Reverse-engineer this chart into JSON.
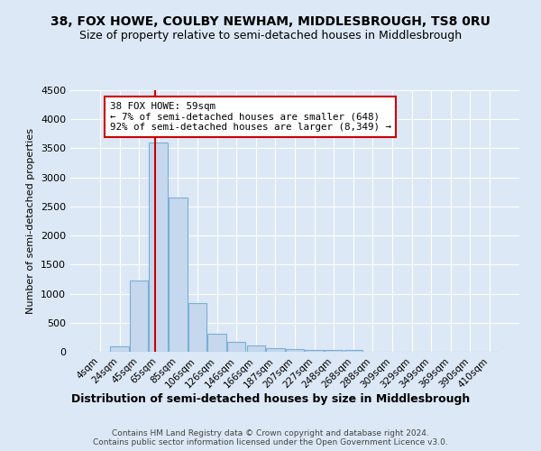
{
  "title": "38, FOX HOWE, COULBY NEWHAM, MIDDLESBROUGH, TS8 0RU",
  "subtitle": "Size of property relative to semi-detached houses in Middlesbrough",
  "xlabel": "Distribution of semi-detached houses by size in Middlesbrough",
  "ylabel": "Number of semi-detached properties",
  "footnote": "Contains HM Land Registry data © Crown copyright and database right 2024.\nContains public sector information licensed under the Open Government Licence v3.0.",
  "categories": [
    "4sqm",
    "24sqm",
    "45sqm",
    "65sqm",
    "85sqm",
    "106sqm",
    "126sqm",
    "146sqm",
    "166sqm",
    "187sqm",
    "207sqm",
    "227sqm",
    "248sqm",
    "268sqm",
    "288sqm",
    "309sqm",
    "329sqm",
    "349sqm",
    "369sqm",
    "390sqm",
    "410sqm"
  ],
  "values": [
    0,
    100,
    1220,
    3600,
    2660,
    840,
    310,
    165,
    110,
    60,
    45,
    30,
    30,
    30,
    0,
    0,
    0,
    0,
    0,
    0,
    0
  ],
  "bar_color": "#c5d8ed",
  "bar_edge_color": "#7bafd4",
  "property_size": "59sqm",
  "pct_smaller": 7,
  "count_smaller": 648,
  "pct_larger": 92,
  "count_larger": "8,349",
  "annotation_box_color": "#ffffff",
  "annotation_box_edge_color": "#cc0000",
  "property_line_color": "#cc0000",
  "property_line_index": 2.82,
  "ylim": [
    0,
    4500
  ],
  "yticks": [
    0,
    500,
    1000,
    1500,
    2000,
    2500,
    3000,
    3500,
    4000,
    4500
  ],
  "bg_color": "#dce8f5",
  "title_fontsize": 10,
  "subtitle_fontsize": 9,
  "footnote_fontsize": 6.5
}
